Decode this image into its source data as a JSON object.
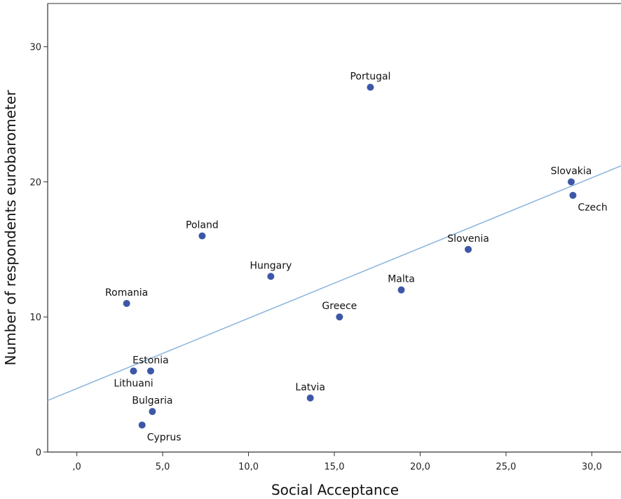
{
  "chart_data": {
    "type": "scatter",
    "title": "",
    "xlabel": "Social Acceptance",
    "ylabel": "Number of respondents eurobarometer",
    "xlim": [
      -1.7,
      31.7
    ],
    "ylim": [
      0,
      33.2
    ],
    "x_ticks": [
      {
        "value": 0,
        "label": ",0"
      },
      {
        "value": 5,
        "label": "5,0"
      },
      {
        "value": 10,
        "label": "10,0"
      },
      {
        "value": 15,
        "label": "15,0"
      },
      {
        "value": 20,
        "label": "20,0"
      },
      {
        "value": 25,
        "label": "25,0"
      },
      {
        "value": 30,
        "label": "30,0"
      }
    ],
    "y_ticks": [
      {
        "value": 0,
        "label": "0"
      },
      {
        "value": 10,
        "label": "10"
      },
      {
        "value": 20,
        "label": "20"
      },
      {
        "value": 30,
        "label": "30"
      }
    ],
    "grid": false,
    "point_color": "#3d57a8",
    "fit_line_color": "#8fb8de",
    "fit_line": {
      "intercept": 4.7,
      "slope": 0.52
    },
    "points": [
      {
        "label": "Portugal",
        "x": 17.1,
        "y": 27,
        "label_pos": "above"
      },
      {
        "label": "Slovakia",
        "x": 28.8,
        "y": 20,
        "label_pos": "above"
      },
      {
        "label": "Czech",
        "x": 28.9,
        "y": 19,
        "label_pos": "below-right"
      },
      {
        "label": "Poland",
        "x": 7.3,
        "y": 16,
        "label_pos": "above"
      },
      {
        "label": "Slovenia",
        "x": 22.8,
        "y": 15,
        "label_pos": "above"
      },
      {
        "label": "Hungary",
        "x": 11.3,
        "y": 13,
        "label_pos": "above"
      },
      {
        "label": "Malta",
        "x": 18.9,
        "y": 12,
        "label_pos": "above"
      },
      {
        "label": "Romania",
        "x": 2.9,
        "y": 11,
        "label_pos": "above"
      },
      {
        "label": "Greece",
        "x": 15.3,
        "y": 10,
        "label_pos": "above"
      },
      {
        "label": "Estonia",
        "x": 4.3,
        "y": 6,
        "label_pos": "above"
      },
      {
        "label": "Lithuani",
        "x": 3.3,
        "y": 6,
        "label_pos": "below"
      },
      {
        "label": "Latvia",
        "x": 13.6,
        "y": 4,
        "label_pos": "above"
      },
      {
        "label": "Bulgaria",
        "x": 4.4,
        "y": 3,
        "label_pos": "above"
      },
      {
        "label": "Cyprus",
        "x": 3.8,
        "y": 2,
        "label_pos": "below-right"
      }
    ]
  }
}
